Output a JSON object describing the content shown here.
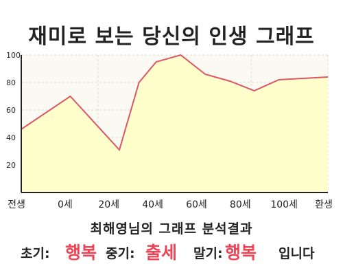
{
  "header": {
    "title": "재미로 보는 당신의 인생 그래프"
  },
  "chart_data": {
    "type": "area",
    "x_ticks": [
      "전생",
      "0세",
      "20세",
      "40세",
      "60세",
      "80세",
      "100세",
      "환생"
    ],
    "y_ticks": [
      "20",
      "40",
      "60",
      "80",
      "100"
    ],
    "ylim": [
      0,
      100
    ],
    "x": [
      -20,
      0,
      20,
      28,
      35,
      45,
      55,
      65,
      75,
      85,
      95,
      105
    ],
    "values": [
      46,
      70,
      31,
      80,
      95,
      100,
      86,
      81,
      74,
      82,
      83,
      84
    ],
    "line_color": "#dd5566",
    "fill_color": "#ffffcc",
    "grid": true
  },
  "analysis": {
    "subtitle": "최해영님의 그래프 분석결과",
    "early_label": "초기:",
    "early_value": "행복",
    "middle_label": "중기:",
    "middle_value": "출세",
    "late_label": "말기:",
    "late_value": "행복",
    "suffix": "입니다",
    "accent_color": "#ee4455"
  }
}
